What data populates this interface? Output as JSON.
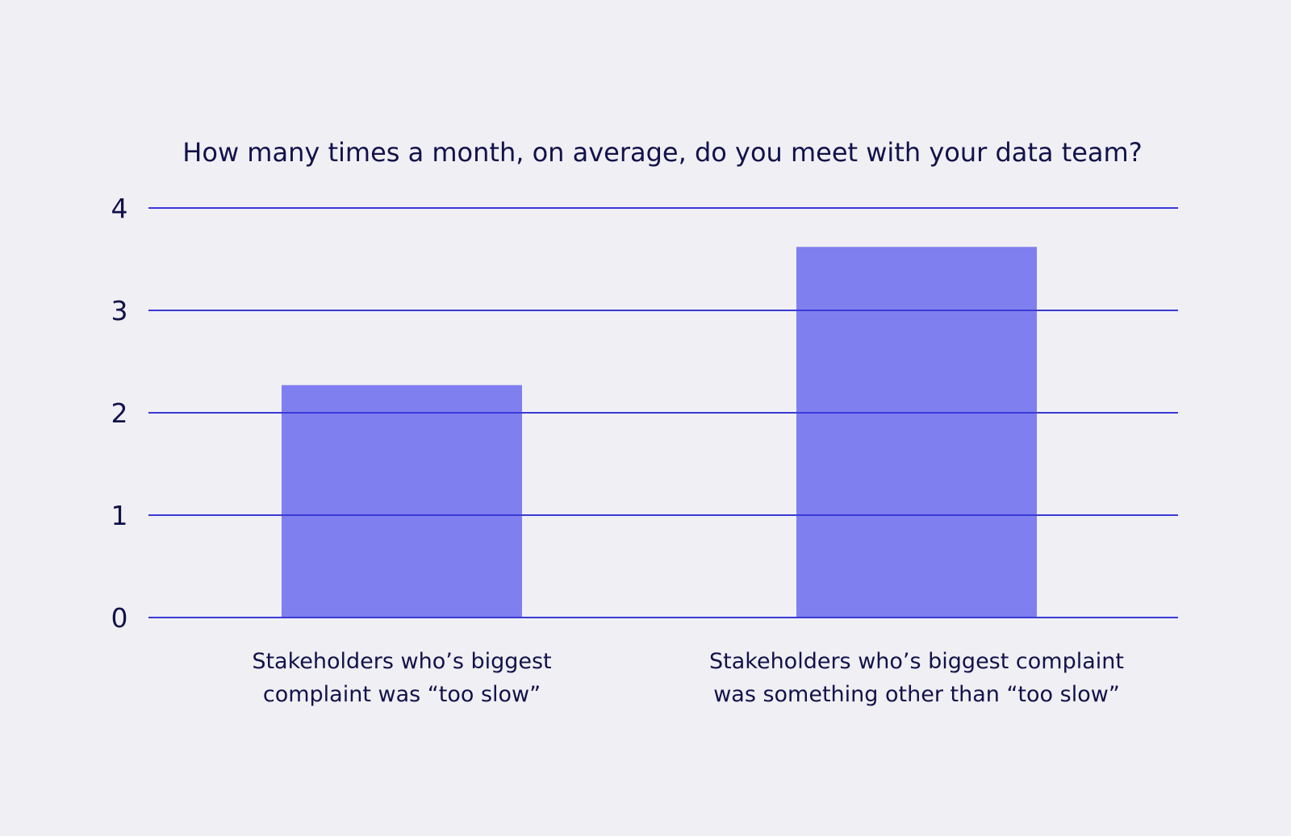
{
  "chart_data": {
    "type": "bar",
    "title": "How many times a month, on average, do you meet with your data team?",
    "xlabel": "",
    "ylabel": "",
    "categories": [
      [
        "Stakeholders who’s biggest",
        "complaint was “too slow”"
      ],
      [
        "Stakeholders who’s biggest complaint",
        "was something other than “too slow”"
      ]
    ],
    "values": [
      2.27,
      3.62
    ],
    "ylim": [
      0,
      4
    ],
    "yticks": [
      "0",
      "1",
      "2",
      "3",
      "4"
    ],
    "grid": true,
    "legend": "none",
    "colors": {
      "bar": "#7f7fef",
      "grid": "#3a3ad6",
      "text": "#12124a",
      "background": "#f0eff4"
    }
  }
}
